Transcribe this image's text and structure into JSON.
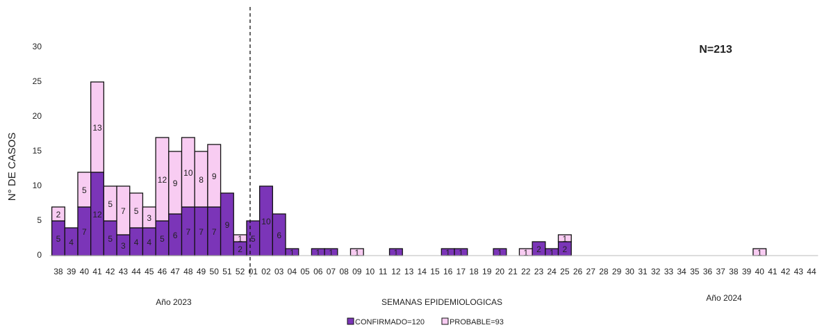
{
  "chart_data": {
    "type": "stacked_bar",
    "annotation": "N=213",
    "period_labels": [
      "Año 2023",
      "Año 2024"
    ],
    "xlabel": "SEMANAS EPIDEMIOLOGICAS",
    "ylabel": "N° DE CASOS",
    "categories": [
      "38",
      "39",
      "40",
      "41",
      "42",
      "43",
      "44",
      "45",
      "46",
      "47",
      "48",
      "49",
      "50",
      "51",
      "52",
      "01",
      "02",
      "03",
      "04",
      "05",
      "06",
      "07",
      "08",
      "09",
      "10",
      "11",
      "12",
      "13",
      "14",
      "15",
      "16",
      "17",
      "18",
      "19",
      "20",
      "21",
      "22",
      "23",
      "24",
      "25",
      "26",
      "27",
      "28",
      "29",
      "30",
      "31",
      "32",
      "33",
      "34",
      "35",
      "36",
      "37",
      "38",
      "39",
      "40",
      "41",
      "42",
      "43",
      "44"
    ],
    "series": [
      {
        "name": "CONFIRMADO=120",
        "color": "#7b35b8",
        "values": [
          5,
          4,
          7,
          12,
          5,
          3,
          4,
          4,
          5,
          6,
          7,
          7,
          7,
          9,
          2,
          5,
          10,
          6,
          1,
          0,
          1,
          1,
          0,
          0,
          0,
          0,
          1,
          0,
          0,
          0,
          1,
          1,
          0,
          0,
          1,
          0,
          0,
          2,
          1,
          2,
          0,
          0,
          0,
          0,
          0,
          0,
          0,
          0,
          0,
          0,
          0,
          0,
          0,
          0,
          0,
          0,
          0,
          0,
          0
        ]
      },
      {
        "name": "PROBABLE=93",
        "color": "#f8ccf2",
        "values": [
          2,
          0,
          5,
          13,
          5,
          7,
          5,
          3,
          12,
          9,
          10,
          8,
          9,
          0,
          1,
          0,
          0,
          0,
          0,
          0,
          0,
          0,
          0,
          1,
          0,
          0,
          0,
          0,
          0,
          0,
          0,
          0,
          0,
          0,
          0,
          0,
          1,
          0,
          0,
          1,
          0,
          0,
          0,
          0,
          0,
          0,
          0,
          0,
          0,
          0,
          0,
          0,
          0,
          0,
          1,
          0,
          0,
          0,
          0
        ]
      }
    ],
    "ylim": [
      0,
      35
    ],
    "yticks": [
      0,
      5,
      10,
      15,
      20,
      25,
      30
    ]
  }
}
